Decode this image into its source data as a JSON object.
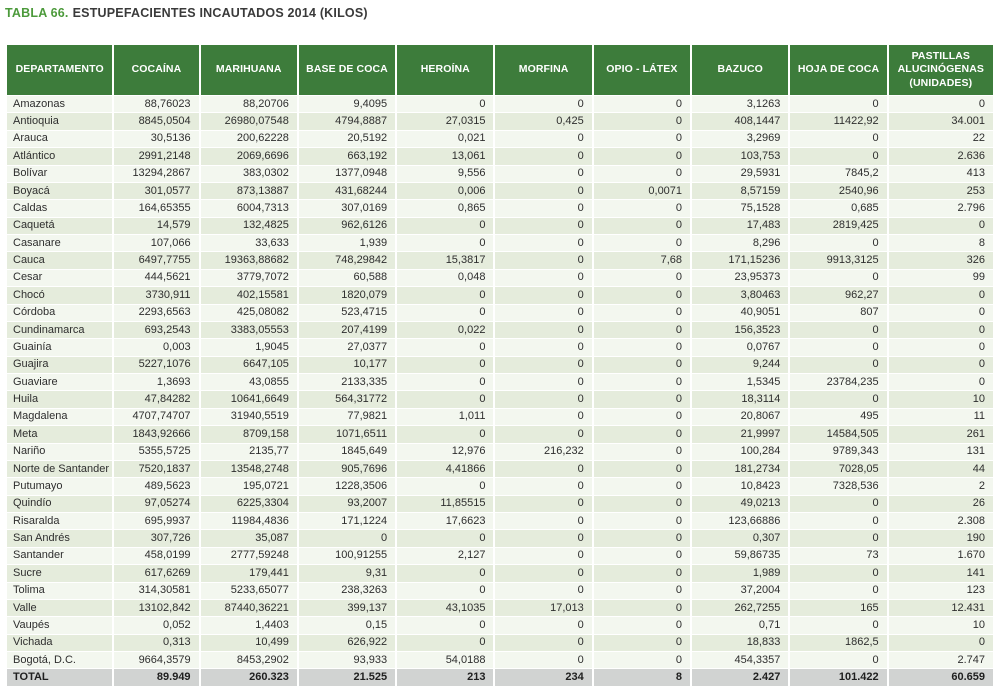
{
  "title": {
    "prefix": "TABLA 66.",
    "text": "ESTUPEFACIENTES INCAUTADOS 2014 (KILOS)"
  },
  "colors": {
    "header_green": "#3d7c3b",
    "title_green": "#4c9a3b",
    "row_light": "#f3f7ef",
    "row_alt": "#e5ecdc",
    "total_bg": "#d1d3d2"
  },
  "table": {
    "headers": [
      "DEPARTAMENTO",
      "COCAÍNA",
      "MARIHUANA",
      "BASE DE COCA",
      "HEROÍNA",
      "MORFINA",
      "OPIO - LÁTEX",
      "BAZUCO",
      "HOJA DE COCA",
      "PASTILLAS ALUCINÓGENAS (UNIDADES)"
    ],
    "rows": [
      [
        "Amazonas",
        "88,76023",
        "88,20706",
        "9,4095",
        "0",
        "0",
        "0",
        "3,1263",
        "0",
        "0"
      ],
      [
        "Antioquia",
        "8845,0504",
        "26980,07548",
        "4794,8887",
        "27,0315",
        "0,425",
        "0",
        "408,1447",
        "11422,92",
        "34.001"
      ],
      [
        "Arauca",
        "30,5136",
        "200,62228",
        "20,5192",
        "0,021",
        "0",
        "0",
        "3,2969",
        "0",
        "22"
      ],
      [
        "Atlántico",
        "2991,2148",
        "2069,6696",
        "663,192",
        "13,061",
        "0",
        "0",
        "103,753",
        "0",
        "2.636"
      ],
      [
        "Bolívar",
        "13294,2867",
        "383,0302",
        "1377,0948",
        "9,556",
        "0",
        "0",
        "29,5931",
        "7845,2",
        "413"
      ],
      [
        "Boyacá",
        "301,0577",
        "873,13887",
        "431,68244",
        "0,006",
        "0",
        "0,0071",
        "8,57159",
        "2540,96",
        "253"
      ],
      [
        "Caldas",
        "164,65355",
        "6004,7313",
        "307,0169",
        "0,865",
        "0",
        "0",
        "75,1528",
        "0,685",
        "2.796"
      ],
      [
        "Caquetá",
        "14,579",
        "132,4825",
        "962,6126",
        "0",
        "0",
        "0",
        "17,483",
        "2819,425",
        "0"
      ],
      [
        "Casanare",
        "107,066",
        "33,633",
        "1,939",
        "0",
        "0",
        "0",
        "8,296",
        "0",
        "8"
      ],
      [
        "Cauca",
        "6497,7755",
        "19363,88682",
        "748,29842",
        "15,3817",
        "0",
        "7,68",
        "171,15236",
        "9913,3125",
        "326"
      ],
      [
        "Cesar",
        "444,5621",
        "3779,7072",
        "60,588",
        "0,048",
        "0",
        "0",
        "23,95373",
        "0",
        "99"
      ],
      [
        "Chocó",
        "3730,911",
        "402,15581",
        "1820,079",
        "0",
        "0",
        "0",
        "3,80463",
        "962,27",
        "0"
      ],
      [
        "Córdoba",
        "2293,6563",
        "425,08082",
        "523,4715",
        "0",
        "0",
        "0",
        "40,9051",
        "807",
        "0"
      ],
      [
        "Cundinamarca",
        "693,2543",
        "3383,05553",
        "207,4199",
        "0,022",
        "0",
        "0",
        "156,3523",
        "0",
        "0"
      ],
      [
        "Guainía",
        "0,003",
        "1,9045",
        "27,0377",
        "0",
        "0",
        "0",
        "0,0767",
        "0",
        "0"
      ],
      [
        "Guajira",
        "5227,1076",
        "6647,105",
        "10,177",
        "0",
        "0",
        "0",
        "9,244",
        "0",
        "0"
      ],
      [
        "Guaviare",
        "1,3693",
        "43,0855",
        "2133,335",
        "0",
        "0",
        "0",
        "1,5345",
        "23784,235",
        "0"
      ],
      [
        "Huila",
        "47,84282",
        "10641,6649",
        "564,31772",
        "0",
        "0",
        "0",
        "18,3114",
        "0",
        "10"
      ],
      [
        "Magdalena",
        "4707,74707",
        "31940,5519",
        "77,9821",
        "1,011",
        "0",
        "0",
        "20,8067",
        "495",
        "11"
      ],
      [
        "Meta",
        "1843,92666",
        "8709,158",
        "1071,6511",
        "0",
        "0",
        "0",
        "21,9997",
        "14584,505",
        "261"
      ],
      [
        "Nariño",
        "5355,5725",
        "2135,77",
        "1845,649",
        "12,976",
        "216,232",
        "0",
        "100,284",
        "9789,343",
        "131"
      ],
      [
        "Norte de Santander",
        "7520,1837",
        "13548,2748",
        "905,7696",
        "4,41866",
        "0",
        "0",
        "181,2734",
        "7028,05",
        "44"
      ],
      [
        "Putumayo",
        "489,5623",
        "195,0721",
        "1228,3506",
        "0",
        "0",
        "0",
        "10,8423",
        "7328,536",
        "2"
      ],
      [
        "Quindío",
        "97,05274",
        "6225,3304",
        "93,2007",
        "11,85515",
        "0",
        "0",
        "49,0213",
        "0",
        "26"
      ],
      [
        "Risaralda",
        "695,9937",
        "11984,4836",
        "171,1224",
        "17,6623",
        "0",
        "0",
        "123,66886",
        "0",
        "2.308"
      ],
      [
        "San Andrés",
        "307,726",
        "35,087",
        "0",
        "0",
        "0",
        "0",
        "0,307",
        "0",
        "190"
      ],
      [
        "Santander",
        "458,0199",
        "2777,59248",
        "100,91255",
        "2,127",
        "0",
        "0",
        "59,86735",
        "73",
        "1.670"
      ],
      [
        "Sucre",
        "617,6269",
        "179,441",
        "9,31",
        "0",
        "0",
        "0",
        "1,989",
        "0",
        "141"
      ],
      [
        "Tolima",
        "314,30581",
        "5233,65077",
        "238,3263",
        "0",
        "0",
        "0",
        "37,2004",
        "0",
        "123"
      ],
      [
        "Valle",
        "13102,842",
        "87440,36221",
        "399,137",
        "43,1035",
        "17,013",
        "0",
        "262,7255",
        "165",
        "12.431"
      ],
      [
        "Vaupés",
        "0,052",
        "1,4403",
        "0,15",
        "0",
        "0",
        "0",
        "0,71",
        "0",
        "10"
      ],
      [
        "Vichada",
        "0,313",
        "10,499",
        "626,922",
        "0",
        "0",
        "0",
        "18,833",
        "1862,5",
        "0"
      ],
      [
        "Bogotá, D.C.",
        "9664,3579",
        "8453,2902",
        "93,933",
        "54,0188",
        "0",
        "0",
        "454,3357",
        "0",
        "2.747"
      ]
    ],
    "total": [
      "TOTAL",
      "89.949",
      "260.323",
      "21.525",
      "213",
      "234",
      "8",
      "2.427",
      "101.422",
      "60.659"
    ]
  }
}
